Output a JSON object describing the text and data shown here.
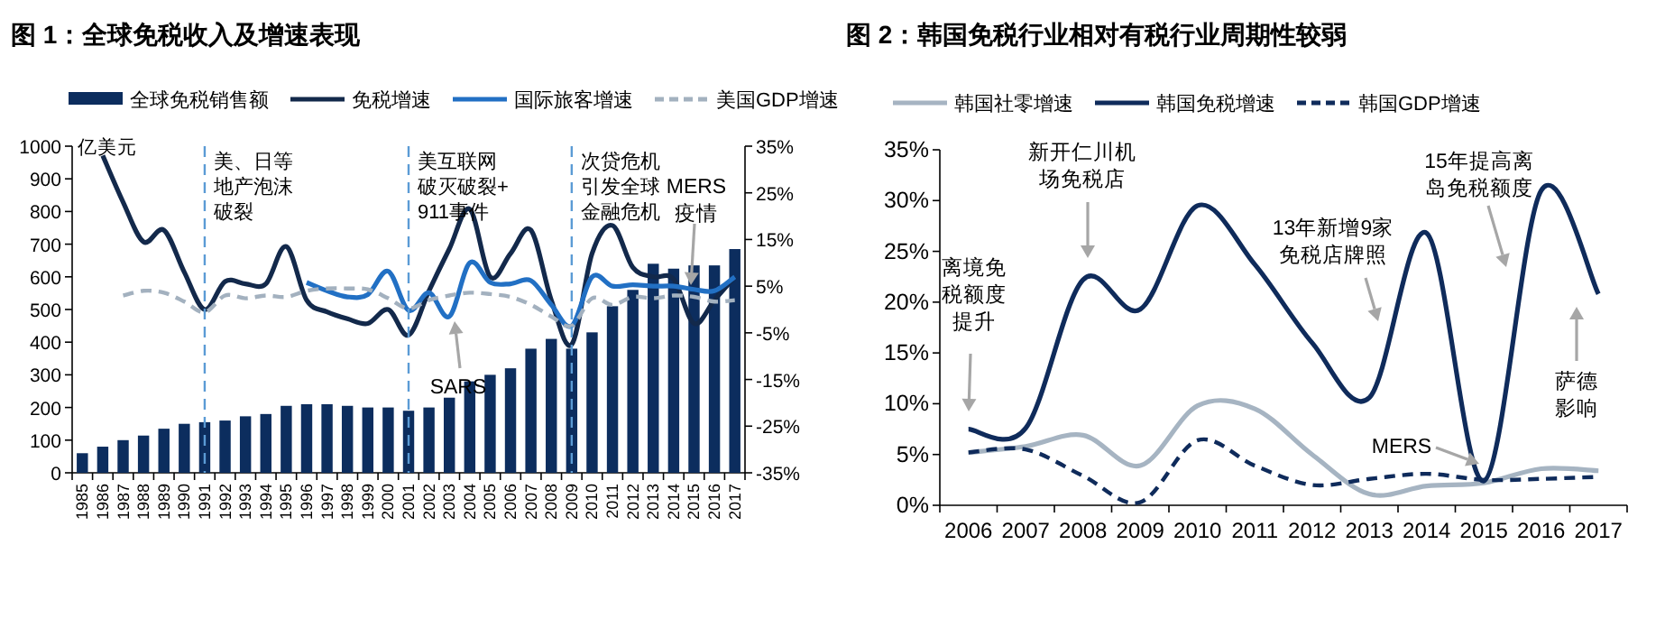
{
  "chart_data": [
    {
      "type": "bar",
      "title": "图 1：全球免税收入及增速表现",
      "ylabel": "亿美元",
      "categories": [
        "1985",
        "1986",
        "1987",
        "1988",
        "1989",
        "1990",
        "1991",
        "1992",
        "1993",
        "1994",
        "1995",
        "1996",
        "1997",
        "1998",
        "1999",
        "2000",
        "2001",
        "2002",
        "2003",
        "2004",
        "2005",
        "2006",
        "2007",
        "2008",
        "2009",
        "2010",
        "2011",
        "2012",
        "2013",
        "2014",
        "2015",
        "2016",
        "2017"
      ],
      "series": [
        {
          "name": "全球免税销售额",
          "color": "#0c2d5e",
          "values": [
            60,
            80,
            100,
            114,
            135,
            150,
            155,
            160,
            173,
            180,
            205,
            210,
            210,
            205,
            200,
            200,
            190,
            200,
            230,
            280,
            300,
            320,
            380,
            410,
            380,
            430,
            510,
            560,
            640,
            625,
            635,
            635,
            685
          ]
        },
        {
          "name": "免税增速",
          "type": "line",
          "axis": "y2",
          "color": "#13294b",
          "values": [
            null,
            33,
            23,
            14.5,
            17,
            8,
            0,
            6,
            5.5,
            5.5,
            13.5,
            2,
            -0.5,
            -2,
            -3,
            0,
            -5.5,
            4,
            13,
            21.5,
            7,
            12,
            17,
            2,
            -7.5,
            12,
            18,
            9,
            7,
            6.5,
            -3,
            2,
            7
          ]
        },
        {
          "name": "国际旅客增速",
          "type": "line",
          "axis": "y2",
          "color": "#2270c4",
          "values": [
            null,
            null,
            null,
            null,
            null,
            null,
            null,
            null,
            null,
            null,
            null,
            5.8,
            4,
            2.7,
            3.2,
            8.2,
            -0.2,
            3.6,
            -1.5,
            10,
            5.8,
            5.5,
            6.2,
            1,
            -3.5,
            7,
            5,
            5.3,
            5,
            5,
            4.3,
            4,
            7
          ]
        },
        {
          "name": "美国GDP增速",
          "type": "line",
          "axis": "y2",
          "color": "#a3b1bf",
          "line_style": "dashed",
          "values": [
            null,
            null,
            3,
            4,
            3.6,
            1.7,
            -0.6,
            3,
            2.4,
            3,
            2.7,
            4,
            4.5,
            4.5,
            4.3,
            2.4,
            0.2,
            2,
            3,
            3.6,
            3.3,
            2.7,
            1,
            -1.5,
            -3.5,
            2.4,
            1,
            2.7,
            2.4,
            3,
            2.7,
            1.7,
            2
          ]
        }
      ],
      "ylim": [
        0,
        1000
      ],
      "yticks": [
        0,
        100,
        200,
        300,
        400,
        500,
        600,
        700,
        800,
        900,
        1000
      ],
      "y2lim": [
        -35,
        35
      ],
      "y2ticks": [
        {
          "value": -35,
          "label": "-35%"
        },
        {
          "value": -25,
          "label": "-25%"
        },
        {
          "value": -15,
          "label": "-15%"
        },
        {
          "value": -5,
          "label": "-5%"
        },
        {
          "value": 5,
          "label": "5%"
        },
        {
          "value": 15,
          "label": "15%"
        },
        {
          "value": 25,
          "label": "25%"
        },
        {
          "value": 35,
          "label": "35%"
        }
      ],
      "ref_lines": [
        {
          "axis": "x",
          "value": "1991",
          "label": "美、日等地产泡沫破裂",
          "color": "#5b9bd5",
          "line_style": "dashed"
        },
        {
          "axis": "x",
          "value": "2001",
          "label": "美互联网破灭破裂+911事件",
          "color": "#5b9bd5",
          "line_style": "dashed"
        },
        {
          "axis": "x",
          "value": "2009",
          "label": "次贷危机引发全球金融危机",
          "color": "#5b9bd5",
          "line_style": "dashed"
        }
      ],
      "annotations": [
        "SARS",
        "MERS疫情"
      ],
      "legend": "top"
    },
    {
      "type": "line",
      "title": "图 2：韩国免税行业相对有税行业周期性较弱",
      "categories": [
        "2006",
        "2007",
        "2008",
        "2009",
        "2010",
        "2011",
        "2012",
        "2013",
        "2014",
        "2015",
        "2016",
        "2017"
      ],
      "series": [
        {
          "name": "韩国社零增速",
          "color": "#a6b4c2",
          "values": [
            5.2,
            5.8,
            6.9,
            3.9,
            9.8,
            9.5,
            5,
            1.1,
            1.9,
            2.2,
            3.6,
            3.4
          ]
        },
        {
          "name": "韩国免税增速",
          "color": "#0f2b5b",
          "values": [
            7.5,
            7.6,
            22.2,
            19.3,
            29.5,
            23.7,
            16,
            10.6,
            26.8,
            2.4,
            31,
            20.8
          ]
        },
        {
          "name": "韩国GDP增速",
          "color": "#0f2b5b",
          "line_style": "dashed",
          "values": [
            5.2,
            5.5,
            2.9,
            0.3,
            6.4,
            3.9,
            2,
            2.6,
            3.1,
            2.5,
            2.6,
            2.8
          ]
        }
      ],
      "ylim": [
        0,
        35
      ],
      "yticks": [
        {
          "value": 0,
          "label": "0%"
        },
        {
          "value": 5,
          "label": "5%"
        },
        {
          "value": 10,
          "label": "10%"
        },
        {
          "value": 15,
          "label": "15%"
        },
        {
          "value": 20,
          "label": "20%"
        },
        {
          "value": 25,
          "label": "25%"
        },
        {
          "value": 30,
          "label": "30%"
        },
        {
          "value": 35,
          "label": "35%"
        }
      ],
      "annotations": [
        "离境免税额度提升",
        "新开仁川机场免税店",
        "13年新增9家免税店牌照",
        "15年提高离岛免税额度",
        "MERS",
        "萨德影响"
      ],
      "legend": "top"
    }
  ]
}
